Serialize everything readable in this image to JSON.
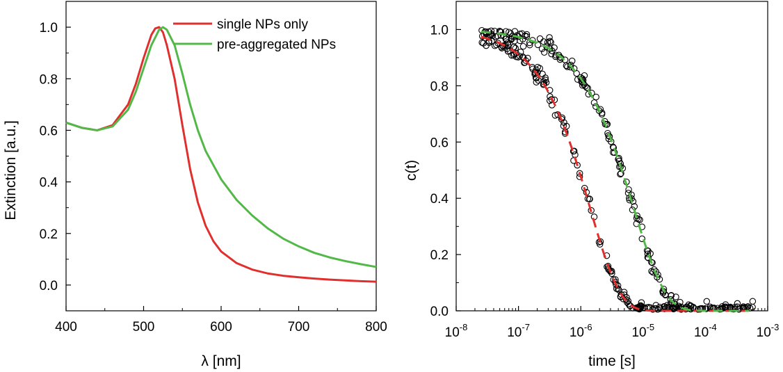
{
  "chart_data": [
    {
      "type": "line",
      "xlabel": "λ [nm]",
      "ylabel": "Extinction [a.u.]",
      "xlim": [
        400,
        800
      ],
      "ylim": [
        -0.1,
        1.1
      ],
      "x_ticks": [
        "400",
        "500",
        "600",
        "700",
        "800"
      ],
      "y_ticks": [
        "0.0",
        "0.2",
        "0.4",
        "0.6",
        "0.8",
        "1.0"
      ],
      "legend_placement": "top-right",
      "series": [
        {
          "name": "single NPs only",
          "color": "#e0302e",
          "x": [
            400,
            420,
            440,
            460,
            480,
            490,
            500,
            510,
            515,
            520,
            525,
            530,
            540,
            550,
            560,
            570,
            580,
            590,
            600,
            620,
            640,
            660,
            680,
            700,
            720,
            740,
            760,
            780,
            800
          ],
          "y": [
            0.63,
            0.61,
            0.6,
            0.62,
            0.7,
            0.78,
            0.88,
            0.97,
            0.995,
            1.0,
            0.98,
            0.93,
            0.8,
            0.62,
            0.45,
            0.32,
            0.23,
            0.17,
            0.13,
            0.085,
            0.06,
            0.045,
            0.036,
            0.03,
            0.025,
            0.021,
            0.018,
            0.015,
            0.013
          ]
        },
        {
          "name": "pre-aggregated NPs",
          "color": "#52b847",
          "x": [
            400,
            420,
            440,
            460,
            480,
            490,
            500,
            510,
            520,
            525,
            530,
            540,
            550,
            560,
            570,
            580,
            600,
            620,
            640,
            660,
            680,
            700,
            720,
            740,
            760,
            780,
            800
          ],
          "y": [
            0.63,
            0.61,
            0.6,
            0.615,
            0.68,
            0.75,
            0.84,
            0.93,
            0.99,
            1.0,
            0.99,
            0.93,
            0.82,
            0.7,
            0.6,
            0.52,
            0.41,
            0.33,
            0.27,
            0.22,
            0.18,
            0.15,
            0.125,
            0.107,
            0.093,
            0.081,
            0.07
          ]
        }
      ]
    },
    {
      "type": "scatter",
      "xlabel": "time [s]",
      "ylabel": "c(t)",
      "x_scale": "log",
      "xlim": [
        1e-08,
        0.001
      ],
      "ylim": [
        0,
        1.1
      ],
      "x_ticks": [
        {
          "base": "10",
          "exp": "-8"
        },
        {
          "base": "10",
          "exp": "-7"
        },
        {
          "base": "10",
          "exp": "-6"
        },
        {
          "base": "10",
          "exp": "-5"
        },
        {
          "base": "10",
          "exp": "-4"
        },
        {
          "base": "10",
          "exp": "-3"
        }
      ],
      "y_ticks": [
        "0.0",
        "0.2",
        "0.4",
        "0.6",
        "0.8",
        "1.0"
      ],
      "fits": [
        {
          "color": "#e0302e",
          "dash": true,
          "tau": 1.4e-06,
          "beta": 0.9
        },
        {
          "color": "#52b847",
          "dash": true,
          "tau": 7e-06,
          "beta": 0.85
        }
      ],
      "scatter_sets": [
        {
          "tau": 1.4e-06,
          "beta": 0.9,
          "x_from": 2.5e-08,
          "x_to": 4e-05,
          "count": 170
        },
        {
          "tau": 7e-06,
          "beta": 0.85,
          "x_from": 2.5e-08,
          "x_to": 0.0006,
          "count": 230
        }
      ]
    }
  ]
}
